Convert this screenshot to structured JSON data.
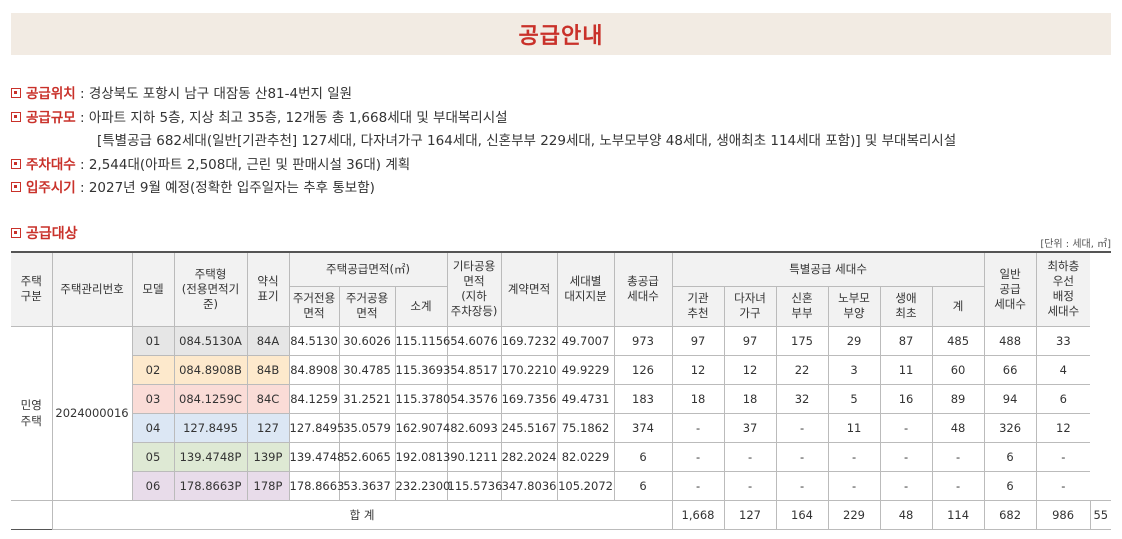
{
  "title": "공급안내",
  "info": [
    {
      "label": "공급위치",
      "text": " : 경상북도 포항시 남구 대잠동 산81-4번지 일원"
    },
    {
      "label": "공급규모",
      "text": " : 아파트 지하 5층, 지상 최고 35층, 12개동 총 1,668세대 및 부대복리시설"
    },
    {
      "label": "",
      "text": "[특별공급 682세대(일반[기관추천] 127세대, 다자녀가구 164세대, 신혼부부 229세대, 노부모부양 48세대, 생애최초 114세대 포함)] 및 부대복리시설"
    },
    {
      "label": "주차대수",
      "text": " : 2,544대(아파트 2,508대, 근린 및 판매시설 36대) 계획"
    },
    {
      "label": "입주시기",
      "text": " : 2027년 9월 예정(정확한 입주일자는 추후 통보함)"
    }
  ],
  "section": {
    "title": "공급대상",
    "unit": "[단위 : 세대, ㎡]"
  },
  "table": {
    "headers": {
      "type": "주택\n구분",
      "mgmt_no": "주택관리번호",
      "model": "모델",
      "house_type": "주택형\n(전용면적기준)",
      "short": "약식\n표기",
      "supply_area": "주택공급면적(㎡)",
      "exclusive": "주거전용\n면적",
      "common": "주거공용\n면적",
      "subtotal": "소계",
      "other_common": "기타공용\n면적\n(지하\n주차장등)",
      "contract": "계약면적",
      "land": "세대별\n대지지분",
      "total_supply": "총공급\n세대수",
      "special": "특별공급 세대수",
      "agency": "기관\n추천",
      "multi_child": "다자녀\n가구",
      "newlywed": "신혼\n부부",
      "elderly": "노부모\n부양",
      "first_life": "생애\n최초",
      "special_sum": "계",
      "general": "일반\n공급\n세대수",
      "lowest_floor": "최하층\n우선\n배정\n세대수"
    },
    "type_label": "민영\n주택",
    "mgmt_no": "2024000016",
    "rows": [
      {
        "model": "01",
        "house_type": "084.5130A",
        "short": "84A",
        "exclusive": "84.5130",
        "common": "30.6026",
        "subtotal": "115.1156",
        "other": "54.6076",
        "contract": "169.7232",
        "land": "49.7007",
        "total": "973",
        "agency": "97",
        "multi": "97",
        "newly": "175",
        "elderly": "29",
        "first": "87",
        "sum": "485",
        "general": "488",
        "lowest": "33"
      },
      {
        "model": "02",
        "house_type": "084.8908B",
        "short": "84B",
        "exclusive": "84.8908",
        "common": "30.4785",
        "subtotal": "115.3693",
        "other": "54.8517",
        "contract": "170.2210",
        "land": "49.9229",
        "total": "126",
        "agency": "12",
        "multi": "12",
        "newly": "22",
        "elderly": "3",
        "first": "11",
        "sum": "60",
        "general": "66",
        "lowest": "4"
      },
      {
        "model": "03",
        "house_type": "084.1259C",
        "short": "84C",
        "exclusive": "84.1259",
        "common": "31.2521",
        "subtotal": "115.3780",
        "other": "54.3576",
        "contract": "169.7356",
        "land": "49.4731",
        "total": "183",
        "agency": "18",
        "multi": "18",
        "newly": "32",
        "elderly": "5",
        "first": "16",
        "sum": "89",
        "general": "94",
        "lowest": "6"
      },
      {
        "model": "04",
        "house_type": "127.8495",
        "short": "127",
        "exclusive": "127.8495",
        "common": "35.0579",
        "subtotal": "162.9074",
        "other": "82.6093",
        "contract": "245.5167",
        "land": "75.1862",
        "total": "374",
        "agency": "-",
        "multi": "37",
        "newly": "-",
        "elderly": "11",
        "first": "-",
        "sum": "48",
        "general": "326",
        "lowest": "12"
      },
      {
        "model": "05",
        "house_type": "139.4748P",
        "short": "139P",
        "exclusive": "139.4748",
        "common": "52.6065",
        "subtotal": "192.0813",
        "other": "90.1211",
        "contract": "282.2024",
        "land": "82.0229",
        "total": "6",
        "agency": "-",
        "multi": "-",
        "newly": "-",
        "elderly": "-",
        "first": "-",
        "sum": "-",
        "general": "6",
        "lowest": "-"
      },
      {
        "model": "06",
        "house_type": "178.8663P",
        "short": "178P",
        "exclusive": "178.8663",
        "common": "53.3637",
        "subtotal": "232.2300",
        "other": "115.5736",
        "contract": "347.8036",
        "land": "105.2072",
        "total": "6",
        "agency": "-",
        "multi": "-",
        "newly": "-",
        "elderly": "-",
        "first": "-",
        "sum": "-",
        "general": "6",
        "lowest": "-"
      }
    ],
    "totals": {
      "label": "합 계",
      "total": "1,668",
      "agency": "127",
      "multi": "164",
      "newly": "229",
      "elderly": "48",
      "first": "114",
      "sum": "682",
      "general": "986",
      "lowest": "55"
    }
  },
  "colors": {
    "accent": "#c9312a",
    "header_bg": "#f2ebe3",
    "model_colors": [
      "#e6e6e6",
      "#fde9cc",
      "#fadcd7",
      "#dce7f4",
      "#dee9d4",
      "#e8dcea"
    ]
  }
}
